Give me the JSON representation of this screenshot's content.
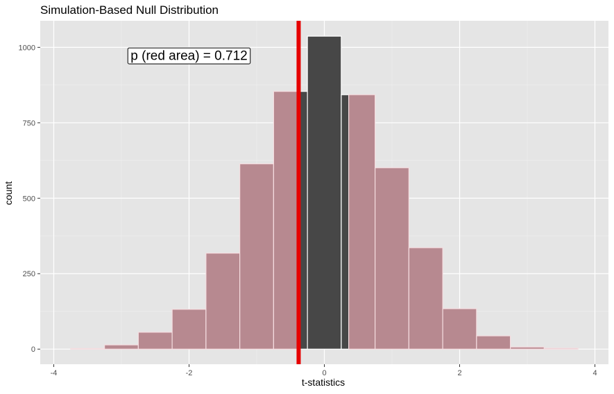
{
  "chart_data": {
    "type": "bar",
    "title": "Simulation-Based Null Distribution",
    "xlabel": "t-statistics",
    "ylabel": "count",
    "xlim": [
      -4.0,
      4.0
    ],
    "ylim": [
      0,
      1000
    ],
    "x_ticks": [
      -4,
      -2,
      0,
      2,
      4
    ],
    "y_ticks": [
      0,
      250,
      500,
      750,
      1000
    ],
    "grid": true,
    "bin_width": 0.5,
    "bins": [
      {
        "x_start": -3.75,
        "x_end": -3.25,
        "count": 2,
        "shaded": true
      },
      {
        "x_start": -3.25,
        "x_end": -2.75,
        "count": 14,
        "shaded": true
      },
      {
        "x_start": -2.75,
        "x_end": -2.25,
        "count": 56,
        "shaded": true
      },
      {
        "x_start": -2.25,
        "x_end": -1.75,
        "count": 132,
        "shaded": true
      },
      {
        "x_start": -1.75,
        "x_end": -1.25,
        "count": 318,
        "shaded": true
      },
      {
        "x_start": -1.25,
        "x_end": -0.75,
        "count": 614,
        "shaded": true
      },
      {
        "x_start": -0.75,
        "x_end": -0.36,
        "count": 854,
        "shaded": true
      },
      {
        "x_start": -0.36,
        "x_end": -0.25,
        "count": 854,
        "shaded": false
      },
      {
        "x_start": -0.25,
        "x_end": 0.25,
        "count": 1037,
        "shaded": false
      },
      {
        "x_start": 0.25,
        "x_end": 0.36,
        "count": 843,
        "shaded": false
      },
      {
        "x_start": 0.36,
        "x_end": 0.75,
        "count": 843,
        "shaded": true
      },
      {
        "x_start": 0.75,
        "x_end": 1.25,
        "count": 601,
        "shaded": true
      },
      {
        "x_start": 1.25,
        "x_end": 1.75,
        "count": 336,
        "shaded": true
      },
      {
        "x_start": 1.75,
        "x_end": 2.25,
        "count": 134,
        "shaded": true
      },
      {
        "x_start": 2.25,
        "x_end": 2.75,
        "count": 44,
        "shaded": true
      },
      {
        "x_start": 2.75,
        "x_end": 3.25,
        "count": 7,
        "shaded": true
      },
      {
        "x_start": 3.25,
        "x_end": 3.75,
        "count": 3,
        "shaded": true
      }
    ],
    "observed_stat": -0.38,
    "annotation": {
      "text": "p (red area) = 0.712",
      "x": -2.0,
      "y": 975
    },
    "colors": {
      "panel_background": "#e5e5e5",
      "grid_major": "#ffffff",
      "grid_minor": "#f0f0f0",
      "bar_unshaded": "#474747",
      "bar_unshaded_border": "#ffffff",
      "bar_shaded": "#b78990",
      "bar_shaded_border": "#f5dde0",
      "observed_line": "#e60000",
      "tick_text": "#4d4d4d",
      "tick_mark": "#333333"
    }
  }
}
